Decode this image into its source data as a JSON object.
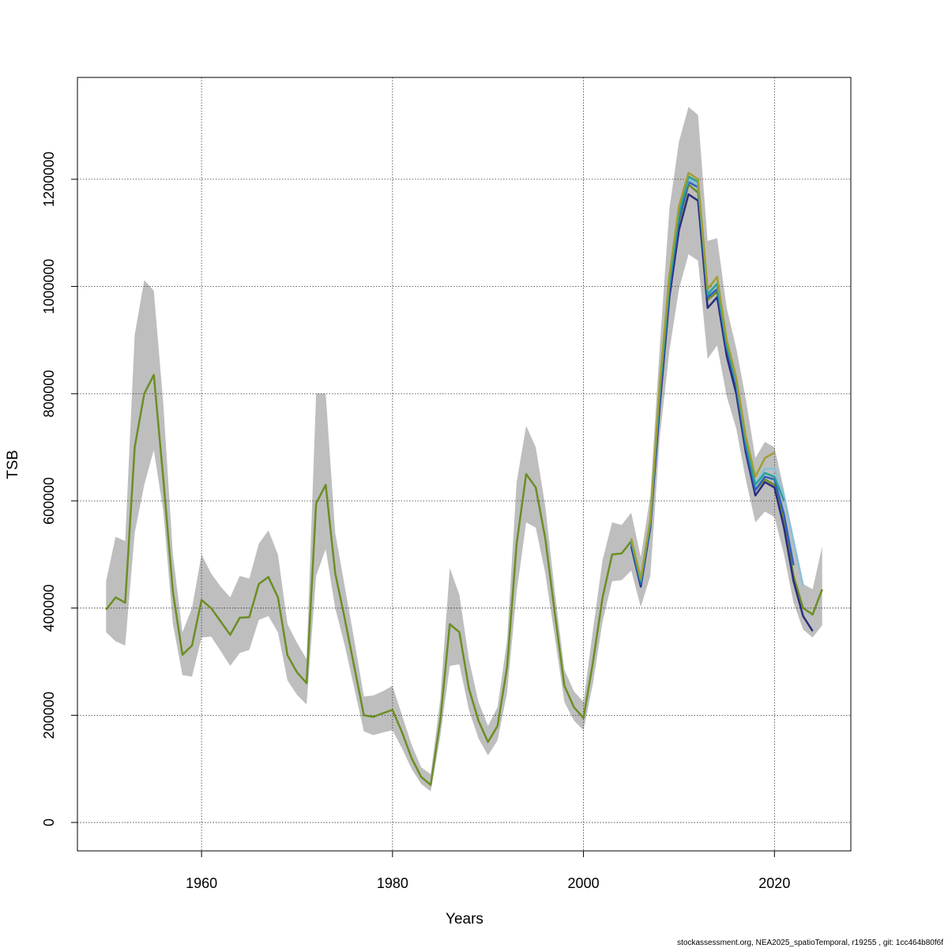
{
  "chart_data": {
    "type": "line",
    "xlabel": "Years",
    "ylabel": "TSB",
    "footer": "stockassessment.org, NEA2025_spatioTemporal, r19255 , git: 1cc464b80f6f",
    "xlim": [
      1947,
      2028
    ],
    "ylim": [
      -53000,
      1390000
    ],
    "xticks": [
      1960,
      1980,
      2000,
      2020
    ],
    "yticks": [
      0,
      200000,
      400000,
      600000,
      800000,
      1000000,
      1200000
    ],
    "grid": true,
    "x": [
      1950,
      1951,
      1952,
      1953,
      1954,
      1955,
      1956,
      1957,
      1958,
      1959,
      1960,
      1961,
      1962,
      1963,
      1964,
      1965,
      1966,
      1967,
      1968,
      1969,
      1970,
      1971,
      1972,
      1973,
      1974,
      1975,
      1976,
      1977,
      1978,
      1979,
      1980,
      1981,
      1982,
      1983,
      1984,
      1985,
      1986,
      1987,
      1988,
      1989,
      1990,
      1991,
      1992,
      1993,
      1994,
      1995,
      1996,
      1997,
      1998,
      1999,
      2000,
      2001,
      2002,
      2003,
      2004,
      2005,
      2006,
      2007,
      2008,
      2009,
      2010,
      2011,
      2012,
      2013,
      2014,
      2015,
      2016,
      2017,
      2018,
      2019,
      2020,
      2021,
      2022,
      2023,
      2024,
      2025
    ],
    "band": {
      "color": "#bebebe",
      "upper": [
        450000,
        533000,
        525000,
        910000,
        1012000,
        992000,
        780000,
        500000,
        355000,
        400000,
        500000,
        465000,
        440000,
        420000,
        460000,
        455000,
        520000,
        545000,
        500000,
        370000,
        335000,
        305000,
        800000,
        800000,
        540000,
        440000,
        340000,
        235000,
        237000,
        245000,
        255000,
        200000,
        145000,
        103000,
        90000,
        230000,
        475000,
        425000,
        305000,
        225000,
        180000,
        215000,
        340000,
        635000,
        740000,
        700000,
        590000,
        430000,
        285000,
        245000,
        225000,
        360000,
        490000,
        560000,
        555000,
        578000,
        495000,
        610000,
        890000,
        1145000,
        1270000,
        1335000,
        1320000,
        1085000,
        1090000,
        960000,
        885000,
        790000,
        680000,
        710000,
        700000,
        620000,
        520000,
        445000,
        435000,
        515000
      ],
      "lower": [
        355000,
        338000,
        330000,
        540000,
        630000,
        695000,
        580000,
        370000,
        275000,
        272000,
        345000,
        347000,
        320000,
        292000,
        316000,
        322000,
        378000,
        385000,
        355000,
        265000,
        238000,
        220000,
        460000,
        510000,
        400000,
        330000,
        250000,
        170000,
        163000,
        168000,
        172000,
        138000,
        100000,
        72000,
        58000,
        160000,
        292000,
        295000,
        210000,
        157000,
        125000,
        153000,
        242000,
        430000,
        560000,
        550000,
        465000,
        345000,
        225000,
        190000,
        172000,
        260000,
        375000,
        450000,
        452000,
        470000,
        402000,
        460000,
        720000,
        880000,
        995000,
        1060000,
        1048000,
        865000,
        890000,
        795000,
        735000,
        640000,
        560000,
        580000,
        570000,
        500000,
        410000,
        360000,
        345000,
        368000
      ]
    },
    "values": [
      397000,
      420000,
      410000,
      700000,
      800000,
      835000,
      640000,
      430000,
      313000,
      330000,
      415000,
      400000,
      375000,
      350000,
      382000,
      383000,
      445000,
      458000,
      420000,
      312000,
      280000,
      260000,
      595000,
      630000,
      465000,
      380000,
      290000,
      200000,
      197000,
      204000,
      210000,
      168000,
      120000,
      85000,
      70000,
      190000,
      370000,
      355000,
      250000,
      190000,
      150000,
      180000,
      290000,
      520000,
      650000,
      625000,
      530000,
      390000,
      255000,
      215000,
      195000,
      300000,
      420000,
      500000,
      502000,
      525000,
      450000,
      560000,
      800000,
      1000000,
      1120000,
      1190000,
      1175000,
      975000,
      990000,
      880000,
      810000,
      700000,
      620000,
      640000,
      630000,
      560000,
      460000,
      400000,
      388000,
      435000
    ],
    "color": "#6b8e23",
    "series": [
      {
        "color": "#2b2d7e",
        "x": [
          2005,
          2006,
          2007,
          2008,
          2009,
          2010,
          2011,
          2012,
          2013,
          2014,
          2015,
          2016,
          2017,
          2018,
          2019,
          2020,
          2021,
          2022,
          2023,
          2024
        ],
        "values": [
          515000,
          440000,
          550000,
          780000,
          980000,
          1105000,
          1172000,
          1160000,
          960000,
          980000,
          870000,
          800000,
          690000,
          610000,
          635000,
          625000,
          550000,
          450000,
          385000,
          357000
        ]
      },
      {
        "color": "#3060c0",
        "x": [
          2005,
          2006,
          2007,
          2008,
          2009,
          2010,
          2011,
          2012,
          2013,
          2014,
          2015,
          2016,
          2017,
          2018,
          2019,
          2020,
          2021,
          2022
        ],
        "values": [
          520000,
          445000,
          555000,
          795000,
          995000,
          1125000,
          1195000,
          1185000,
          980000,
          995000,
          885000,
          815000,
          700000,
          620000,
          645000,
          640000,
          575000,
          480000
        ]
      },
      {
        "color": "#87c1d9",
        "x": [
          2005,
          2006,
          2007,
          2008,
          2009,
          2010,
          2011,
          2012,
          2013,
          2014,
          2015,
          2016,
          2017,
          2018,
          2019,
          2020,
          2021,
          2022,
          2023
        ],
        "values": [
          527000,
          452000,
          562000,
          810000,
          1008000,
          1140000,
          1200000,
          1190000,
          990000,
          1003000,
          892000,
          822000,
          712000,
          632000,
          660000,
          660000,
          610000,
          525000,
          442000
        ]
      },
      {
        "color": "#2aa198",
        "x": [
          2005,
          2006,
          2007,
          2008,
          2009,
          2010,
          2011,
          2012,
          2013,
          2014,
          2015,
          2016,
          2017,
          2018,
          2019,
          2020,
          2021
        ],
        "values": [
          525000,
          450000,
          560000,
          805000,
          1005000,
          1135000,
          1205000,
          1195000,
          985000,
          1005000,
          890000,
          825000,
          710000,
          630000,
          652000,
          645000,
          600000
        ]
      },
      {
        "color": "#a0a030",
        "x": [
          2005,
          2006,
          2007,
          2008,
          2009,
          2010,
          2011,
          2012,
          2013,
          2014,
          2015,
          2016,
          2017,
          2018,
          2019,
          2020
        ],
        "values": [
          530000,
          455000,
          565000,
          820000,
          1020000,
          1150000,
          1212000,
          1200000,
          995000,
          1018000,
          900000,
          830000,
          720000,
          645000,
          680000,
          690000
        ]
      }
    ]
  }
}
